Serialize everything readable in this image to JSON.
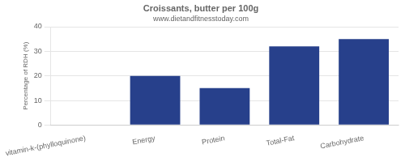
{
  "chart_data": {
    "type": "bar",
    "title": "Croissants, butter per 100g",
    "subtitle": "www.dietandfitnesstoday.com",
    "categories": [
      "vitamin-k-(phylloquinone)",
      "Energy",
      "Protein",
      "Total-Fat",
      "Carbohydrate"
    ],
    "values": [
      0,
      20,
      15,
      32,
      35
    ],
    "color": "#27408B",
    "ylabel": "Percentage of RDH (%)",
    "ylim": [
      0,
      40
    ],
    "yticks": [
      0,
      10,
      20,
      30,
      40
    ],
    "grid": true
  }
}
